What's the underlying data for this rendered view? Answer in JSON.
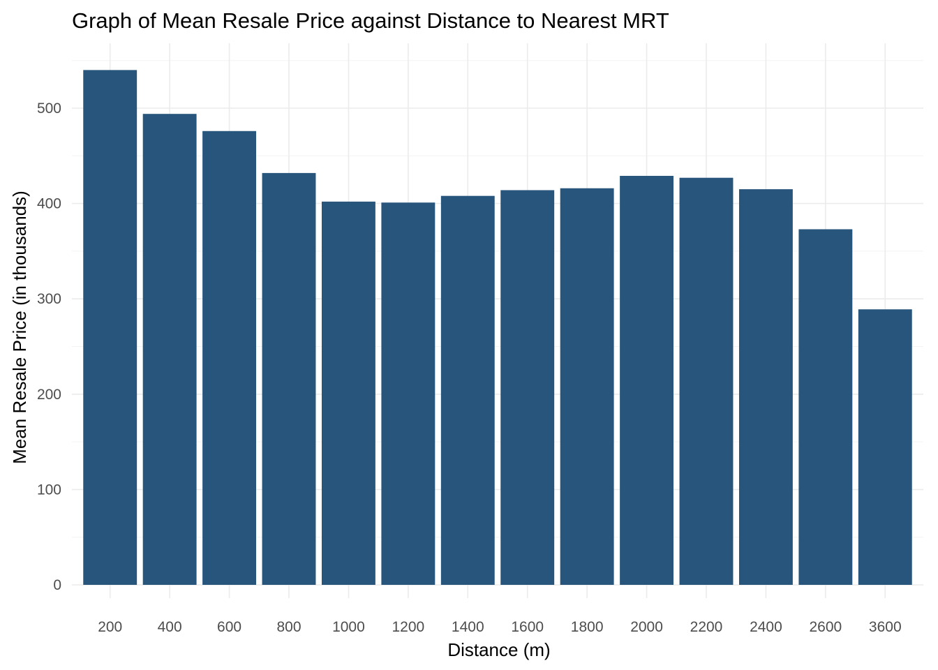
{
  "chart_data": {
    "type": "bar",
    "title": "Graph of Mean Resale Price against Distance to Nearest MRT",
    "xlabel": "Distance (m)",
    "ylabel": "Mean Resale Price (in thousands)",
    "categories": [
      "200",
      "400",
      "600",
      "800",
      "1000",
      "1200",
      "1400",
      "1600",
      "1800",
      "2000",
      "2200",
      "2400",
      "2600",
      "3600"
    ],
    "values": [
      540,
      494,
      476,
      432,
      402,
      401,
      408,
      414,
      416,
      429,
      427,
      415,
      373,
      289
    ],
    "ylim": [
      0,
      550
    ],
    "yticks": [
      0,
      100,
      200,
      300,
      400,
      500
    ],
    "grid": true,
    "legend": "none",
    "colors": {
      "bar": "#27557C",
      "background": "#FFFFFF"
    }
  }
}
